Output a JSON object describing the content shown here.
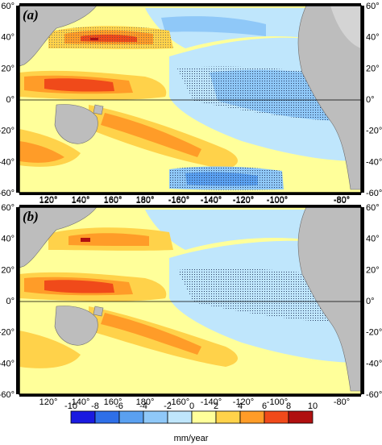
{
  "panels": [
    {
      "id": "a",
      "label": "(a)"
    },
    {
      "id": "b",
      "label": "(b)"
    }
  ],
  "axes": {
    "top_ticks": [
      "120°",
      "140°",
      "160°",
      "180°",
      "-160°",
      "-140°",
      "-120°",
      "-100°",
      "-80°"
    ],
    "bottom_ticks": [
      "120°",
      "140°",
      "160°",
      "180°",
      "-160°",
      "-140°",
      "-120°",
      "-100°",
      "-80°"
    ],
    "left_ticks": [
      "60°",
      "40°",
      "20°",
      "0°",
      "-20°",
      "-40°",
      "-60°"
    ],
    "right_ticks": [
      "60°",
      "40°",
      "20°",
      "0°",
      "-20°",
      "-40°",
      "-60°"
    ]
  },
  "colorbar": {
    "unit": "mm/year",
    "ticks": [
      "-10",
      "-8",
      "-6",
      "-4",
      "-2",
      "0",
      "2",
      "4",
      "6",
      "8",
      "10"
    ],
    "colors": [
      "#1a1ae0",
      "#2e6fe8",
      "#5aa0f0",
      "#8fc8f8",
      "#bfe6fc",
      "#ffff9a",
      "#ffd24a",
      "#ff9c28",
      "#f04a1a",
      "#b01010"
    ]
  },
  "colors": {
    "land": "#bdbdbd",
    "coast": "#6e6e6e",
    "equator_line": "#000000"
  }
}
